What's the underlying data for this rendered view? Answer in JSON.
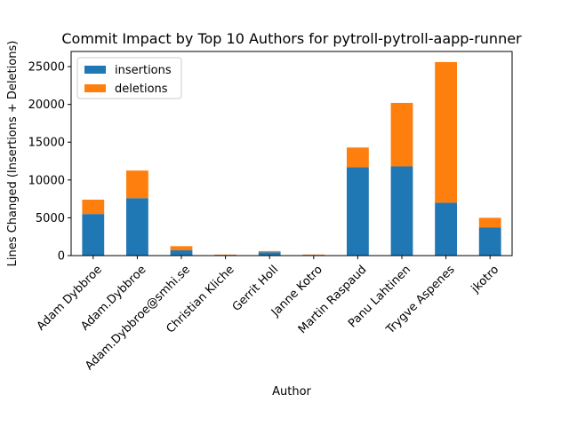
{
  "chart_data": {
    "type": "bar",
    "stacked": true,
    "title": "Commit Impact by Top 10 Authors for pytroll-pytroll-aapp-runner",
    "xlabel": "Author",
    "ylabel": "Lines Changed (Insertions + Deletions)",
    "ylim": [
      0,
      27000
    ],
    "yticks": [
      0,
      5000,
      10000,
      15000,
      20000,
      25000
    ],
    "categories": [
      "Adam Dybbroe",
      "Adam.Dybbroe",
      "Adam.Dybbroe@smhi.se",
      "Christian Kliche",
      "Gerrit Holl",
      "Janne Kotro",
      "Martin Raspaud",
      "Panu Lahtinen",
      "Trygve Aspenes",
      "jkotro"
    ],
    "series": [
      {
        "name": "insertions",
        "color": "#1f77b4",
        "values": [
          5500,
          7600,
          700,
          30,
          450,
          80,
          11700,
          11800,
          7000,
          3700
        ]
      },
      {
        "name": "deletions",
        "color": "#ff7f0e",
        "values": [
          1900,
          3650,
          550,
          100,
          150,
          60,
          2600,
          8400,
          18600,
          1300
        ]
      }
    ],
    "legend": "top-left",
    "grid": false
  }
}
